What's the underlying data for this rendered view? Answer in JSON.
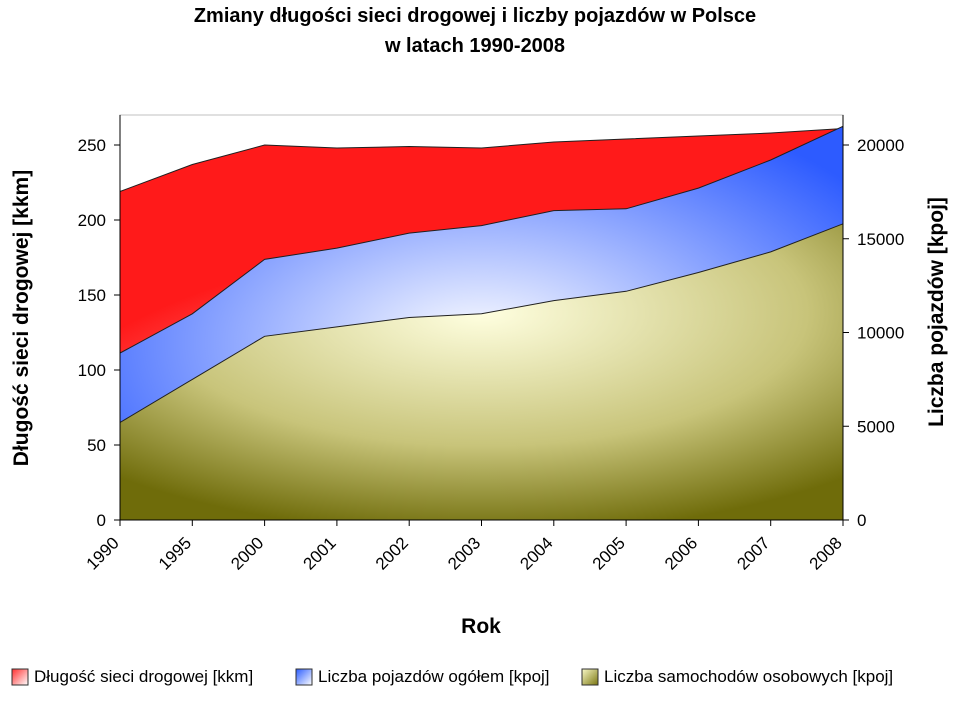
{
  "chart_data": {
    "type": "area",
    "title": "Zmiany długości sieci drogowej i liczby pojazdów w Polsce",
    "subtitle": "w latach 1990-2008",
    "xlabel": "Rok",
    "ylabel_left": "Długość sieci drogowej [kkm]",
    "ylabel_right": "Liczba pojazdów [kpoj]",
    "categories": [
      "1990",
      "1995",
      "2000",
      "2001",
      "2002",
      "2003",
      "2004",
      "2005",
      "2006",
      "2007",
      "2008"
    ],
    "ylim_left": [
      0,
      270
    ],
    "yticks_left": [
      0,
      50,
      100,
      150,
      200,
      250
    ],
    "ylim_right": [
      0,
      21600
    ],
    "yticks_right": [
      0,
      5000,
      10000,
      15000,
      20000
    ],
    "grid": false,
    "legend_position": "bottom",
    "series": [
      {
        "name": "Długość sieci drogowej [kkm]",
        "axis": "left",
        "color": "#ff2020",
        "values": [
          219,
          237,
          250,
          248,
          249,
          248,
          252,
          254,
          256,
          258,
          261
        ]
      },
      {
        "name": "Liczba pojazdów ogółem [kpoj]",
        "axis": "right",
        "color": "#2a5cff",
        "values": [
          8900,
          11000,
          13900,
          14500,
          15300,
          15700,
          16500,
          16600,
          17700,
          19200,
          21000
        ]
      },
      {
        "name": "Liczba samochodów osobowych [kpoj]",
        "axis": "right",
        "color": "#8a8618",
        "values": [
          5200,
          7500,
          9800,
          10300,
          10800,
          11000,
          11700,
          12200,
          13200,
          14300,
          15800
        ]
      }
    ]
  }
}
